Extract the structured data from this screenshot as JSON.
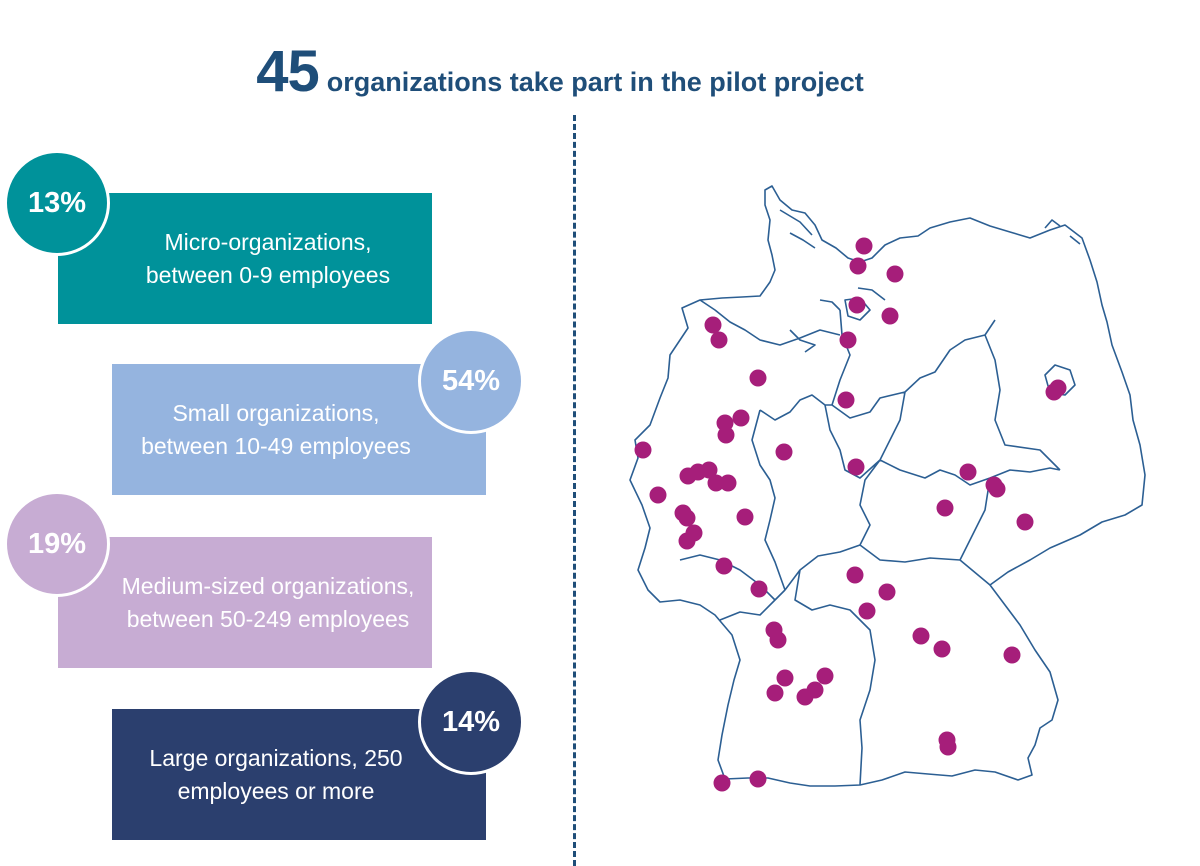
{
  "header": {
    "count": "45",
    "text": "organizations take part in the pilot project"
  },
  "categories": [
    {
      "percent": "13%",
      "label": "Micro-organizations, between 0-9 employees",
      "color": "#00929a"
    },
    {
      "percent": "54%",
      "label": "Small organizations, between 10-49 employees",
      "color": "#95b4df"
    },
    {
      "percent": "19%",
      "label": "Medium-sized organizations, between 50-249 employees",
      "color": "#c7acd3"
    },
    {
      "percent": "14%",
      "label": "Large organizations, 250 employees or more",
      "color": "#2b3f6e"
    }
  ],
  "map": {
    "outline_color": "#2c5f93",
    "marker_color": "#a61e7a"
  }
}
